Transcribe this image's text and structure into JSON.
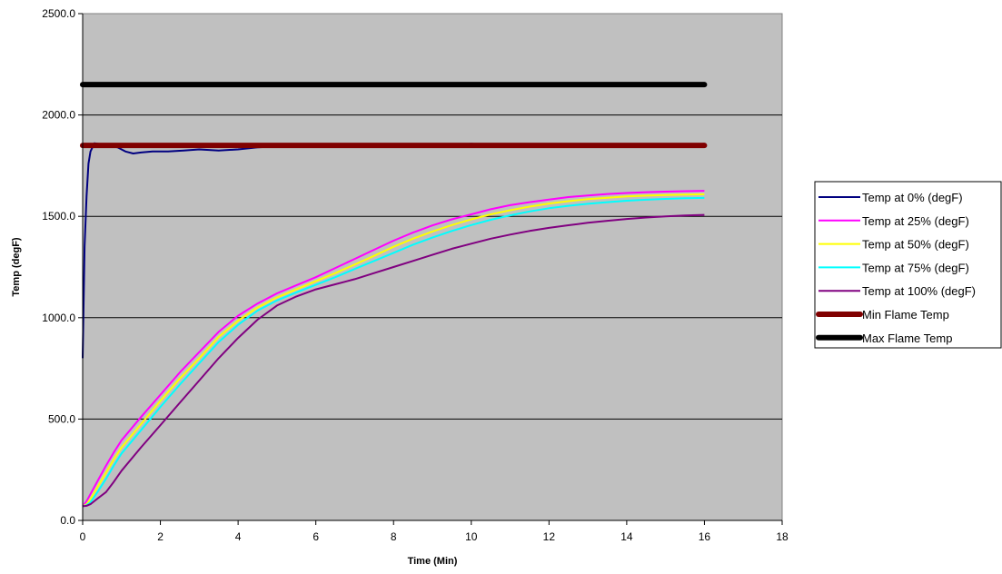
{
  "chart_data": {
    "type": "line",
    "xlabel": "Time (Min)",
    "ylabel": "Temp (degF)",
    "xlim": [
      0,
      18
    ],
    "ylim": [
      0,
      2500
    ],
    "x_ticks": [
      "0",
      "2",
      "4",
      "6",
      "8",
      "10",
      "12",
      "14",
      "16",
      "18"
    ],
    "y_ticks": [
      "0.0",
      "500.0",
      "1000.0",
      "1500.0",
      "2000.0",
      "2500.0"
    ],
    "grid": "horizontal",
    "legend_position": "right",
    "plot_background": "#c0c0c0",
    "series": [
      {
        "name": "Temp at 0% (degF)",
        "color": "#000080",
        "x": [
          0,
          0.05,
          0.1,
          0.15,
          0.2,
          0.3,
          0.5,
          0.7,
          0.9,
          1.1,
          1.3,
          1.5,
          1.8,
          2.2,
          2.6,
          3.0,
          3.5,
          4.0,
          4.5,
          5.0,
          5.5,
          6.0,
          6.5,
          7.0,
          7.5,
          8.0,
          8.5,
          9.0,
          9.5,
          10.0,
          10.5,
          11.0,
          11.5,
          12.0,
          12.5,
          13.0,
          13.5,
          14.0,
          14.5,
          15.0,
          15.5,
          16.0
        ],
        "y": [
          800,
          1350,
          1600,
          1760,
          1820,
          1860,
          1855,
          1850,
          1840,
          1820,
          1810,
          1815,
          1820,
          1820,
          1825,
          1830,
          1825,
          1830,
          1840,
          1845,
          1850,
          1848,
          1852,
          1855,
          1850,
          1848,
          1852,
          1855,
          1850,
          1858,
          1850,
          1845,
          1852,
          1855,
          1850,
          1848,
          1855,
          1850,
          1852,
          1855,
          1850,
          1858
        ]
      },
      {
        "name": "Temp at 25% (degF)",
        "color": "#ff00ff",
        "x": [
          0,
          0.1,
          0.2,
          0.4,
          0.6,
          0.8,
          1.0,
          1.5,
          2.0,
          2.5,
          3.0,
          3.5,
          4.0,
          4.5,
          5.0,
          5.5,
          6.0,
          6.5,
          7.0,
          7.5,
          8.0,
          8.5,
          9.0,
          9.5,
          10.0,
          10.5,
          11.0,
          11.5,
          12.0,
          12.5,
          13.0,
          13.5,
          14.0,
          14.5,
          15.0,
          15.5,
          16.0
        ],
        "y": [
          70,
          95,
          130,
          200,
          270,
          335,
          395,
          510,
          620,
          730,
          830,
          930,
          1010,
          1070,
          1120,
          1160,
          1200,
          1245,
          1290,
          1335,
          1380,
          1420,
          1455,
          1485,
          1510,
          1535,
          1555,
          1570,
          1583,
          1595,
          1603,
          1610,
          1615,
          1619,
          1622,
          1624,
          1626
        ]
      },
      {
        "name": "Temp at 50% (degF)",
        "color": "#ffff00",
        "x": [
          0,
          0.1,
          0.2,
          0.4,
          0.6,
          0.8,
          1.0,
          1.5,
          2.0,
          2.5,
          3.0,
          3.5,
          4.0,
          4.5,
          5.0,
          5.5,
          6.0,
          6.5,
          7.0,
          7.5,
          8.0,
          8.5,
          9.0,
          9.5,
          10.0,
          10.5,
          11.0,
          11.5,
          12.0,
          12.5,
          13.0,
          13.5,
          14.0,
          14.5,
          15.0,
          15.5,
          16.0
        ],
        "y": [
          70,
          80,
          105,
          170,
          235,
          300,
          360,
          475,
          590,
          700,
          800,
          905,
          985,
          1050,
          1100,
          1140,
          1180,
          1220,
          1262,
          1305,
          1350,
          1390,
          1425,
          1457,
          1485,
          1510,
          1530,
          1548,
          1563,
          1575,
          1585,
          1592,
          1598,
          1602,
          1605,
          1607,
          1609
        ]
      },
      {
        "name": "Temp at 75% (degF)",
        "color": "#00ffff",
        "x": [
          0,
          0.1,
          0.2,
          0.4,
          0.6,
          0.8,
          1.0,
          1.5,
          2.0,
          2.5,
          3.0,
          3.5,
          4.0,
          4.5,
          5.0,
          5.5,
          6.0,
          6.5,
          7.0,
          7.5,
          8.0,
          8.5,
          9.0,
          9.5,
          10.0,
          10.5,
          11.0,
          11.5,
          12.0,
          12.5,
          13.0,
          13.5,
          14.0,
          14.5,
          15.0,
          15.5,
          16.0
        ],
        "y": [
          70,
          75,
          90,
          145,
          205,
          270,
          330,
          445,
          560,
          670,
          775,
          880,
          965,
          1035,
          1085,
          1125,
          1162,
          1200,
          1240,
          1280,
          1320,
          1360,
          1395,
          1428,
          1457,
          1483,
          1505,
          1524,
          1540,
          1552,
          1562,
          1570,
          1577,
          1582,
          1586,
          1589,
          1591
        ]
      },
      {
        "name": "Temp at 100% (degF)",
        "color": "#800080",
        "x": [
          0,
          0.1,
          0.2,
          0.4,
          0.6,
          0.8,
          1.0,
          1.5,
          2.0,
          2.5,
          3.0,
          3.5,
          4.0,
          4.5,
          5.0,
          5.5,
          6.0,
          6.5,
          7.0,
          7.5,
          8.0,
          8.5,
          9.0,
          9.5,
          10.0,
          10.5,
          11.0,
          11.5,
          12.0,
          12.5,
          13.0,
          13.5,
          14.0,
          14.5,
          15.0,
          15.5,
          16.0
        ],
        "y": [
          70,
          72,
          80,
          110,
          140,
          190,
          245,
          360,
          470,
          580,
          690,
          800,
          900,
          990,
          1060,
          1105,
          1140,
          1165,
          1190,
          1220,
          1250,
          1280,
          1310,
          1340,
          1365,
          1390,
          1410,
          1428,
          1443,
          1456,
          1468,
          1478,
          1487,
          1494,
          1500,
          1504,
          1507
        ]
      },
      {
        "name": "Min Flame Temp",
        "color": "#800000",
        "thick": true,
        "x": [
          0,
          16
        ],
        "y": [
          1850,
          1850
        ]
      },
      {
        "name": "Max Flame Temp",
        "color": "#000000",
        "thick": true,
        "x": [
          0,
          16
        ],
        "y": [
          2150,
          2150
        ]
      }
    ]
  }
}
